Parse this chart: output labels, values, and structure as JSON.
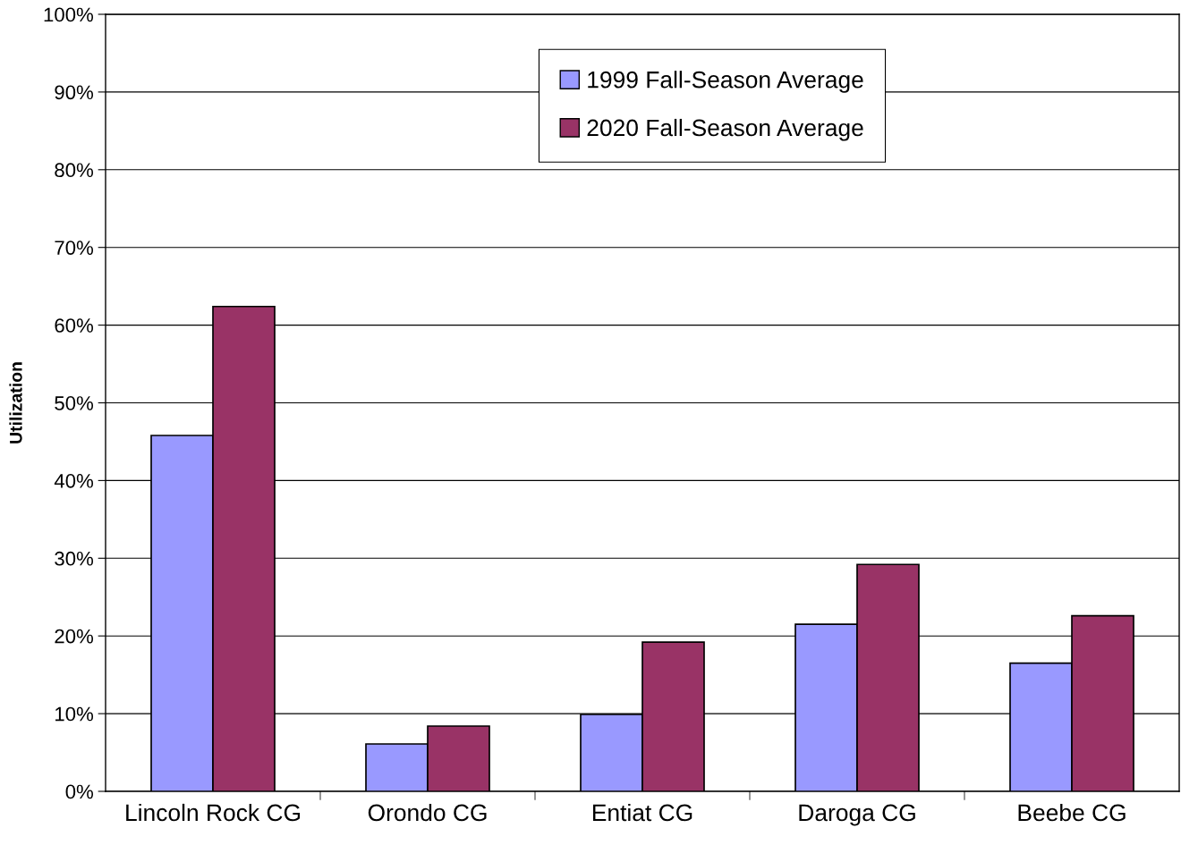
{
  "chart_data": {
    "type": "bar",
    "ylabel": "Utilization",
    "categories": [
      "Lincoln Rock CG",
      "Orondo CG",
      "Entiat CG",
      "Daroga CG",
      "Beebe CG"
    ],
    "series": [
      {
        "name": "1999 Fall-Season Average",
        "color": "#9999ff",
        "values": [
          45.8,
          6.1,
          9.9,
          21.5,
          16.5
        ]
      },
      {
        "name": "2020 Fall-Season Average",
        "color": "#993366",
        "values": [
          62.4,
          8.4,
          19.2,
          29.2,
          22.6
        ]
      }
    ],
    "ylim": [
      0,
      100
    ],
    "yticks": [
      {
        "value": 0,
        "label": "0%"
      },
      {
        "value": 10,
        "label": "10%"
      },
      {
        "value": 20,
        "label": "20%"
      },
      {
        "value": 30,
        "label": "30%"
      },
      {
        "value": 40,
        "label": "40%"
      },
      {
        "value": 50,
        "label": "50%"
      },
      {
        "value": 60,
        "label": "60%"
      },
      {
        "value": 70,
        "label": "70%"
      },
      {
        "value": 80,
        "label": "80%"
      },
      {
        "value": 90,
        "label": "90%"
      },
      {
        "value": 100,
        "label": "100%"
      }
    ],
    "grid": "y",
    "legend": "top"
  }
}
